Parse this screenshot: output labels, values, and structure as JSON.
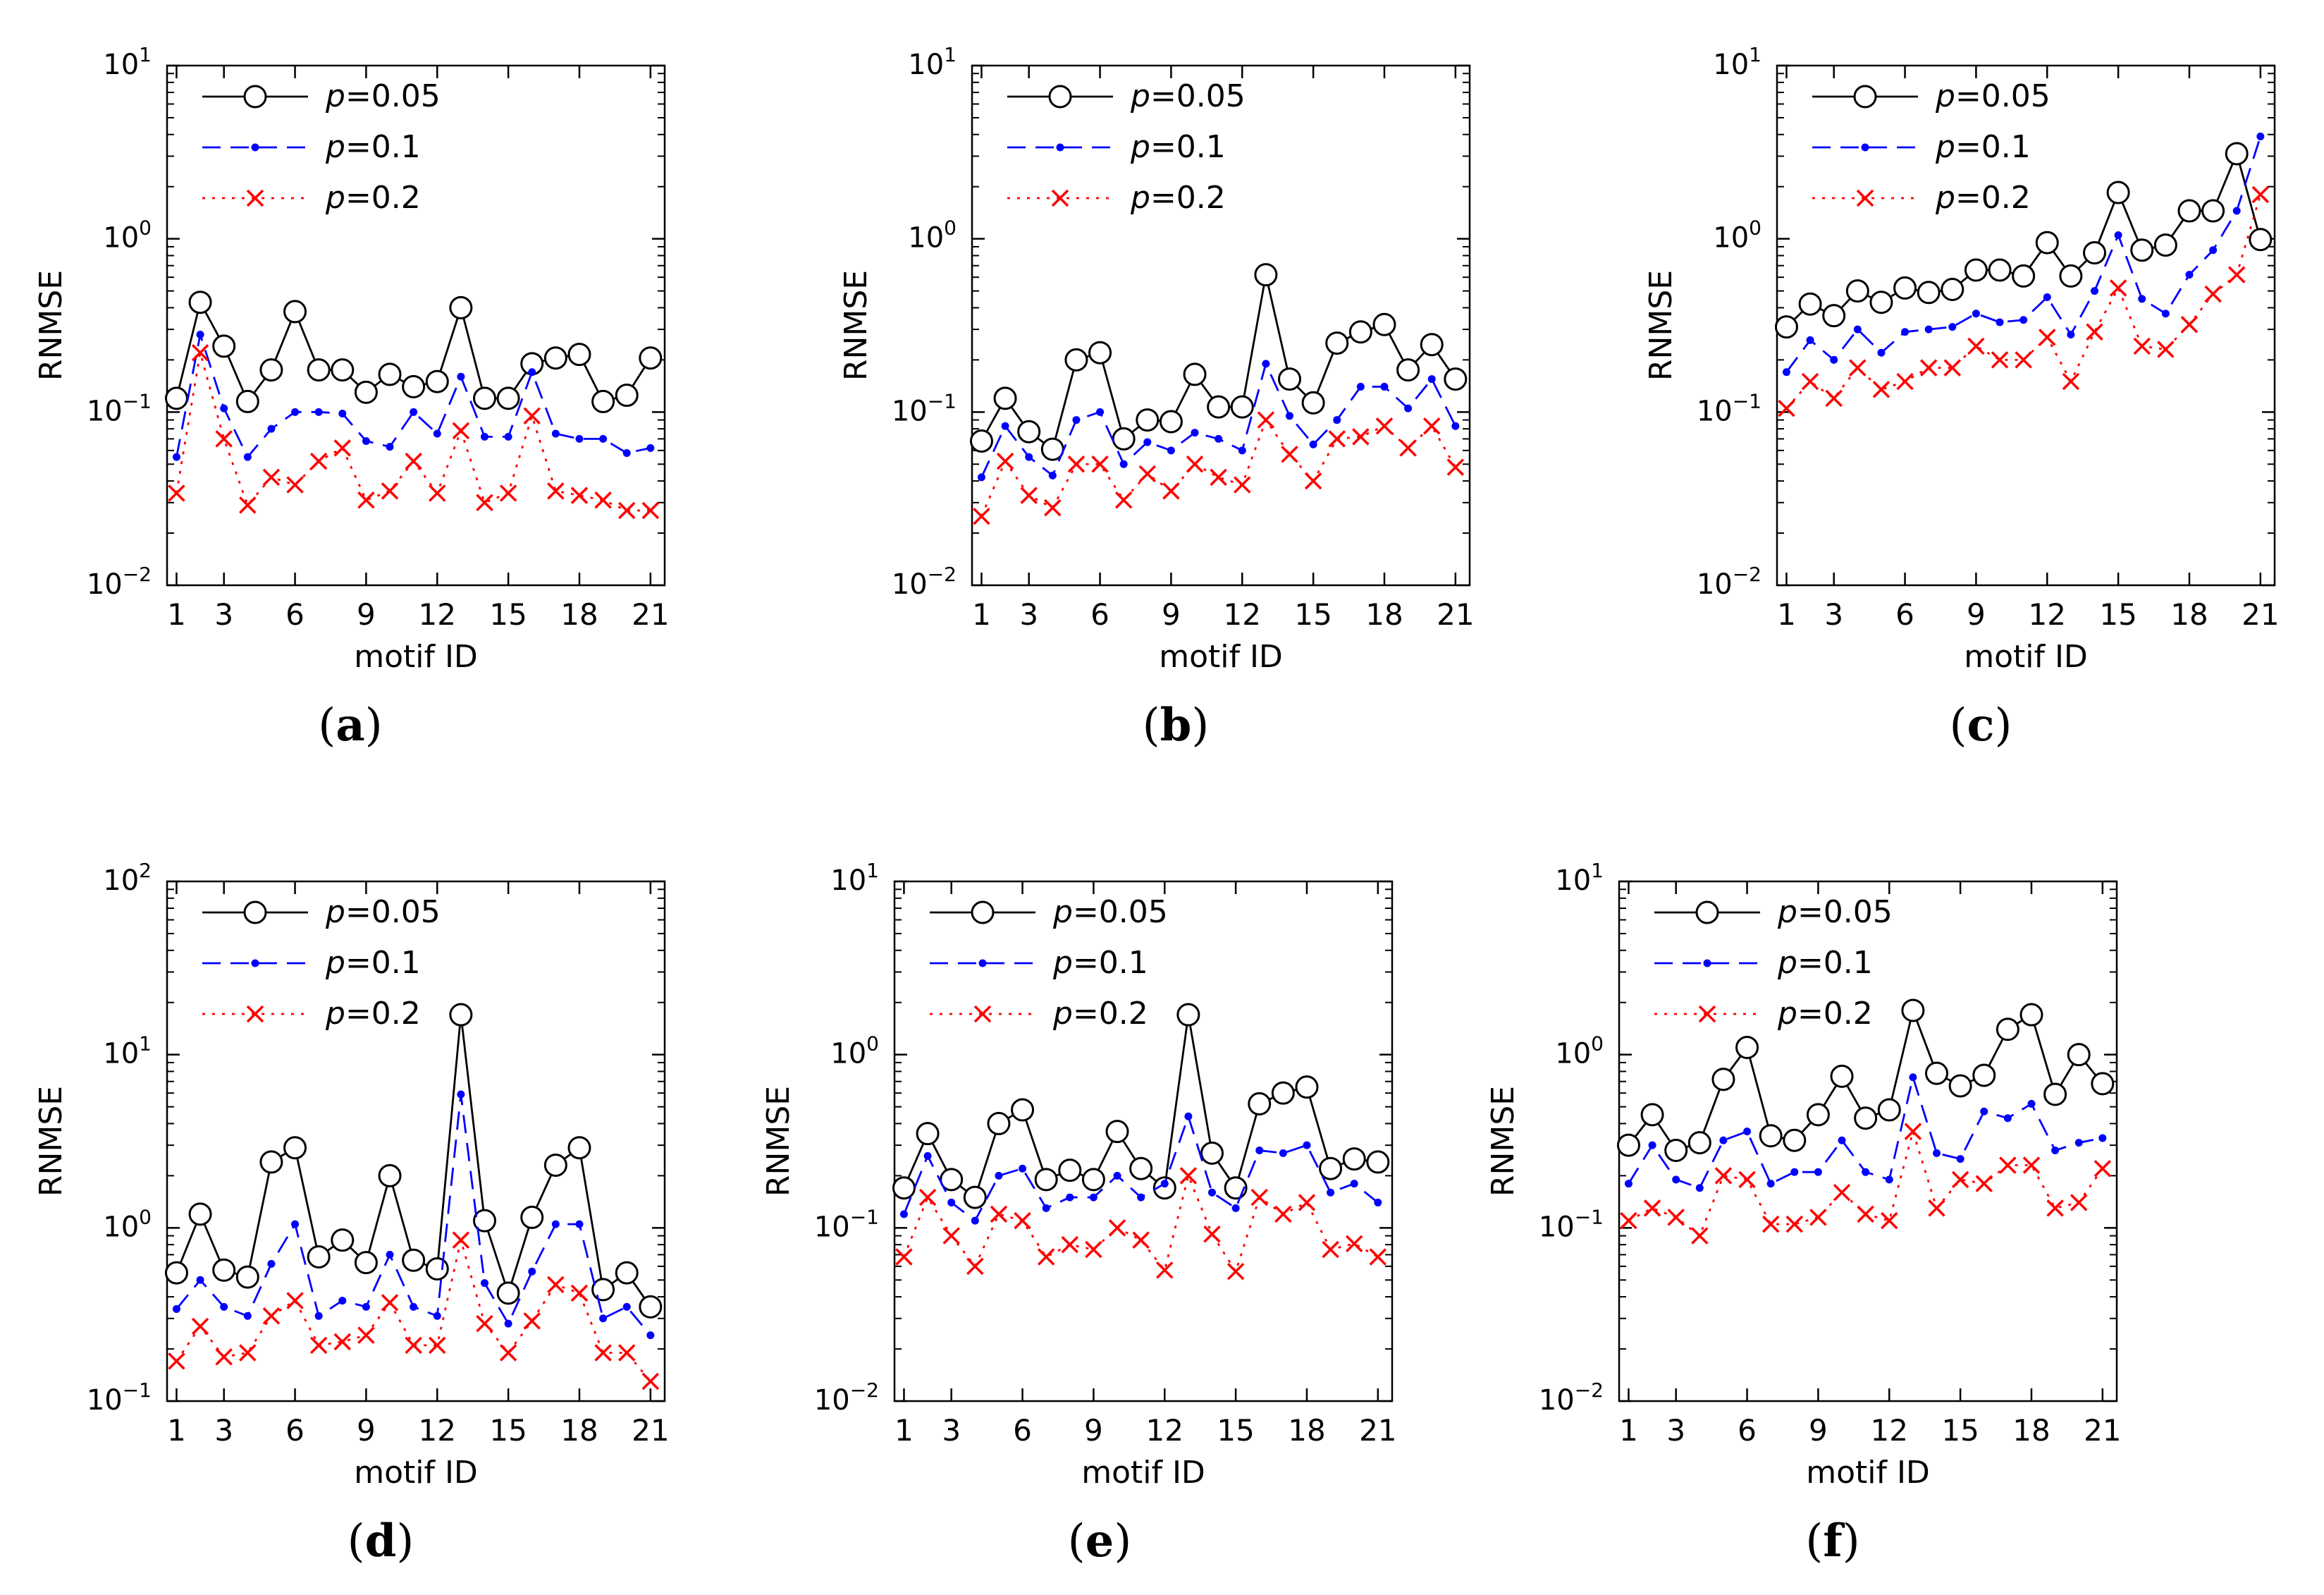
{
  "figure": {
    "x_ticks": [
      1,
      3,
      6,
      9,
      12,
      15,
      18,
      21
    ],
    "series_styles": [
      {
        "key": "p005",
        "color": "#000000",
        "marker": "circle",
        "dash": "solid"
      },
      {
        "key": "p01",
        "color": "#0000ff",
        "marker": "dot",
        "dash": "dashed"
      },
      {
        "key": "p02",
        "color": "#ff0000",
        "marker": "x",
        "dash": "dotted"
      }
    ]
  },
  "chart_data": [
    {
      "type": "line",
      "panel_label": "(a)",
      "xlabel": "motif ID",
      "ylabel": "RNMSE",
      "yscale": "log",
      "ylim": [
        0.01,
        10
      ],
      "yticks": [
        0.01,
        0.1,
        1,
        10
      ],
      "ytick_labels": [
        {
          "base": "10",
          "exp": "−2"
        },
        {
          "base": "10",
          "exp": "−1"
        },
        {
          "base": "10",
          "exp": "0"
        },
        {
          "base": "10",
          "exp": "1"
        }
      ],
      "x": [
        1,
        2,
        3,
        4,
        5,
        6,
        7,
        8,
        9,
        10,
        11,
        12,
        13,
        14,
        15,
        16,
        17,
        18,
        19,
        20,
        21
      ],
      "series": [
        {
          "name": "p=0.05",
          "p_label": "p",
          "eq_label": "=0.05",
          "values": [
            0.12,
            0.43,
            0.24,
            0.115,
            0.175,
            0.38,
            0.175,
            0.175,
            0.13,
            0.165,
            0.14,
            0.15,
            0.4,
            0.12,
            0.12,
            0.19,
            0.205,
            0.215,
            0.115,
            0.125,
            0.205
          ]
        },
        {
          "name": "p=0.1",
          "p_label": "p",
          "eq_label": "=0.1",
          "values": [
            0.055,
            0.28,
            0.105,
            0.055,
            0.08,
            0.1,
            0.1,
            0.098,
            0.068,
            0.063,
            0.1,
            0.075,
            0.16,
            0.072,
            0.072,
            0.17,
            0.075,
            0.07,
            0.07,
            0.058,
            0.062
          ]
        },
        {
          "name": "p=0.2",
          "p_label": "p",
          "eq_label": "=0.2",
          "values": [
            0.034,
            0.22,
            0.07,
            0.029,
            0.042,
            0.038,
            0.052,
            0.062,
            0.031,
            0.035,
            0.052,
            0.034,
            0.078,
            0.03,
            0.034,
            0.095,
            0.035,
            0.033,
            0.031,
            0.027,
            0.027
          ]
        }
      ]
    },
    {
      "type": "line",
      "panel_label": "(b)",
      "xlabel": "motif ID",
      "ylabel": "RNMSE",
      "yscale": "log",
      "ylim": [
        0.01,
        10
      ],
      "yticks": [
        0.01,
        0.1,
        1,
        10
      ],
      "ytick_labels": [
        {
          "base": "10",
          "exp": "−2"
        },
        {
          "base": "10",
          "exp": "−1"
        },
        {
          "base": "10",
          "exp": "0"
        },
        {
          "base": "10",
          "exp": "1"
        }
      ],
      "x": [
        1,
        2,
        3,
        4,
        5,
        6,
        7,
        8,
        9,
        10,
        11,
        12,
        13,
        14,
        15,
        16,
        17,
        18,
        19,
        20,
        21
      ],
      "series": [
        {
          "name": "p=0.05",
          "p_label": "p",
          "eq_label": "=0.05",
          "values": [
            0.068,
            0.12,
            0.077,
            0.061,
            0.2,
            0.22,
            0.07,
            0.09,
            0.088,
            0.165,
            0.107,
            0.107,
            0.62,
            0.155,
            0.113,
            0.25,
            0.29,
            0.32,
            0.175,
            0.245,
            0.155
          ]
        },
        {
          "name": "p=0.1",
          "p_label": "p",
          "eq_label": "=0.1",
          "values": [
            0.042,
            0.083,
            0.055,
            0.043,
            0.09,
            0.1,
            0.05,
            0.067,
            0.06,
            0.076,
            0.07,
            0.06,
            0.19,
            0.095,
            0.065,
            0.09,
            0.14,
            0.14,
            0.105,
            0.155,
            0.083
          ]
        },
        {
          "name": "p=0.2",
          "p_label": "p",
          "eq_label": "=0.2",
          "values": [
            0.025,
            0.052,
            0.033,
            0.028,
            0.05,
            0.05,
            0.031,
            0.044,
            0.035,
            0.05,
            0.042,
            0.038,
            0.09,
            0.057,
            0.04,
            0.07,
            0.072,
            0.083,
            0.062,
            0.083,
            0.048
          ]
        }
      ]
    },
    {
      "type": "line",
      "panel_label": "(c)",
      "xlabel": "motif ID",
      "ylabel": "RNMSE",
      "yscale": "log",
      "ylim": [
        0.01,
        10
      ],
      "yticks": [
        0.01,
        0.1,
        1,
        10
      ],
      "ytick_labels": [
        {
          "base": "10",
          "exp": "−2"
        },
        {
          "base": "10",
          "exp": "−1"
        },
        {
          "base": "10",
          "exp": "0"
        },
        {
          "base": "10",
          "exp": "1"
        }
      ],
      "x": [
        1,
        2,
        3,
        4,
        5,
        6,
        7,
        8,
        9,
        10,
        11,
        12,
        13,
        14,
        15,
        16,
        17,
        18,
        19,
        20,
        21
      ],
      "series": [
        {
          "name": "p=0.05",
          "p_label": "p",
          "eq_label": "=0.05",
          "values": [
            0.31,
            0.42,
            0.36,
            0.5,
            0.43,
            0.52,
            0.49,
            0.51,
            0.66,
            0.66,
            0.61,
            0.95,
            0.61,
            0.83,
            1.85,
            0.86,
            0.92,
            1.45,
            1.45,
            3.1,
            0.99
          ]
        },
        {
          "name": "p=0.1",
          "p_label": "p",
          "eq_label": "=0.1",
          "values": [
            0.17,
            0.26,
            0.2,
            0.3,
            0.22,
            0.29,
            0.3,
            0.31,
            0.37,
            0.33,
            0.34,
            0.46,
            0.28,
            0.5,
            1.05,
            0.45,
            0.37,
            0.62,
            0.86,
            1.45,
            3.9
          ]
        },
        {
          "name": "p=0.2",
          "p_label": "p",
          "eq_label": "=0.2",
          "values": [
            0.105,
            0.15,
            0.12,
            0.18,
            0.135,
            0.15,
            0.18,
            0.18,
            0.24,
            0.2,
            0.2,
            0.27,
            0.15,
            0.29,
            0.52,
            0.24,
            0.23,
            0.32,
            0.48,
            0.62,
            1.8
          ]
        }
      ]
    },
    {
      "type": "line",
      "panel_label": "(d)",
      "xlabel": "motif ID",
      "ylabel": "RNMSE",
      "yscale": "log",
      "ylim": [
        0.1,
        100
      ],
      "yticks": [
        0.1,
        1,
        10,
        100
      ],
      "ytick_labels": [
        {
          "base": "10",
          "exp": "−1"
        },
        {
          "base": "10",
          "exp": "0"
        },
        {
          "base": "10",
          "exp": "1"
        },
        {
          "base": "10",
          "exp": "2"
        }
      ],
      "x": [
        1,
        2,
        3,
        4,
        5,
        6,
        7,
        8,
        9,
        10,
        11,
        12,
        13,
        14,
        15,
        16,
        17,
        18,
        19,
        20,
        21
      ],
      "series": [
        {
          "name": "p=0.05",
          "p_label": "p",
          "eq_label": "=0.05",
          "values": [
            0.55,
            1.2,
            0.57,
            0.52,
            2.4,
            2.9,
            0.68,
            0.85,
            0.63,
            2.0,
            0.65,
            0.58,
            17.0,
            1.1,
            0.42,
            1.15,
            2.3,
            2.9,
            0.44,
            0.55,
            0.35
          ]
        },
        {
          "name": "p=0.1",
          "p_label": "p",
          "eq_label": "=0.1",
          "values": [
            0.34,
            0.5,
            0.35,
            0.31,
            0.62,
            1.05,
            0.31,
            0.38,
            0.35,
            0.7,
            0.35,
            0.31,
            5.9,
            0.48,
            0.28,
            0.56,
            1.05,
            1.05,
            0.3,
            0.35,
            0.24
          ]
        },
        {
          "name": "p=0.2",
          "p_label": "p",
          "eq_label": "=0.2",
          "values": [
            0.17,
            0.27,
            0.18,
            0.19,
            0.31,
            0.38,
            0.21,
            0.22,
            0.24,
            0.37,
            0.21,
            0.21,
            0.85,
            0.28,
            0.19,
            0.29,
            0.47,
            0.42,
            0.19,
            0.19,
            0.13
          ]
        }
      ]
    },
    {
      "type": "line",
      "panel_label": "(e)",
      "xlabel": "motif ID",
      "ylabel": "RNMSE",
      "yscale": "log",
      "ylim": [
        0.01,
        10
      ],
      "yticks": [
        0.01,
        0.1,
        1,
        10
      ],
      "ytick_labels": [
        {
          "base": "10",
          "exp": "−2"
        },
        {
          "base": "10",
          "exp": "−1"
        },
        {
          "base": "10",
          "exp": "0"
        },
        {
          "base": "10",
          "exp": "1"
        }
      ],
      "x": [
        1,
        2,
        3,
        4,
        5,
        6,
        7,
        8,
        9,
        10,
        11,
        12,
        13,
        14,
        15,
        16,
        17,
        18,
        19,
        20,
        21
      ],
      "series": [
        {
          "name": "p=0.05",
          "p_label": "p",
          "eq_label": "=0.05",
          "values": [
            0.17,
            0.35,
            0.19,
            0.15,
            0.4,
            0.48,
            0.19,
            0.215,
            0.19,
            0.36,
            0.22,
            0.17,
            1.7,
            0.27,
            0.17,
            0.52,
            0.6,
            0.65,
            0.22,
            0.25,
            0.24
          ]
        },
        {
          "name": "p=0.1",
          "p_label": "p",
          "eq_label": "=0.1",
          "values": [
            0.12,
            0.26,
            0.14,
            0.11,
            0.2,
            0.22,
            0.13,
            0.15,
            0.15,
            0.2,
            0.15,
            0.18,
            0.44,
            0.16,
            0.13,
            0.28,
            0.27,
            0.3,
            0.16,
            0.18,
            0.14
          ]
        },
        {
          "name": "p=0.2",
          "p_label": "p",
          "eq_label": "=0.2",
          "values": [
            0.068,
            0.15,
            0.09,
            0.06,
            0.12,
            0.11,
            0.068,
            0.08,
            0.075,
            0.1,
            0.085,
            0.057,
            0.2,
            0.092,
            0.056,
            0.15,
            0.12,
            0.14,
            0.075,
            0.081,
            0.068
          ]
        }
      ]
    },
    {
      "type": "line",
      "panel_label": "(f)",
      "xlabel": "motif ID",
      "ylabel": "RNMSE",
      "yscale": "log",
      "ylim": [
        0.01,
        10
      ],
      "yticks": [
        0.01,
        0.1,
        1,
        10
      ],
      "ytick_labels": [
        {
          "base": "10",
          "exp": "−2"
        },
        {
          "base": "10",
          "exp": "−1"
        },
        {
          "base": "10",
          "exp": "0"
        },
        {
          "base": "10",
          "exp": "1"
        }
      ],
      "x": [
        1,
        2,
        3,
        4,
        5,
        6,
        7,
        8,
        9,
        10,
        11,
        12,
        13,
        14,
        15,
        16,
        17,
        18,
        19,
        20,
        21
      ],
      "series": [
        {
          "name": "p=0.05",
          "p_label": "p",
          "eq_label": "=0.05",
          "values": [
            0.3,
            0.45,
            0.28,
            0.31,
            0.72,
            1.1,
            0.34,
            0.32,
            0.45,
            0.75,
            0.43,
            0.48,
            1.8,
            0.78,
            0.66,
            0.76,
            1.4,
            1.7,
            0.59,
            1.0,
            0.68
          ]
        },
        {
          "name": "p=0.1",
          "p_label": "p",
          "eq_label": "=0.1",
          "values": [
            0.18,
            0.3,
            0.19,
            0.17,
            0.32,
            0.36,
            0.18,
            0.21,
            0.21,
            0.32,
            0.21,
            0.19,
            0.74,
            0.27,
            0.25,
            0.47,
            0.43,
            0.52,
            0.28,
            0.31,
            0.33
          ]
        },
        {
          "name": "p=0.2",
          "p_label": "p",
          "eq_label": "=0.2",
          "values": [
            0.11,
            0.13,
            0.115,
            0.09,
            0.2,
            0.19,
            0.105,
            0.105,
            0.115,
            0.16,
            0.12,
            0.11,
            0.36,
            0.13,
            0.19,
            0.18,
            0.23,
            0.23,
            0.13,
            0.14,
            0.22
          ]
        }
      ]
    }
  ]
}
